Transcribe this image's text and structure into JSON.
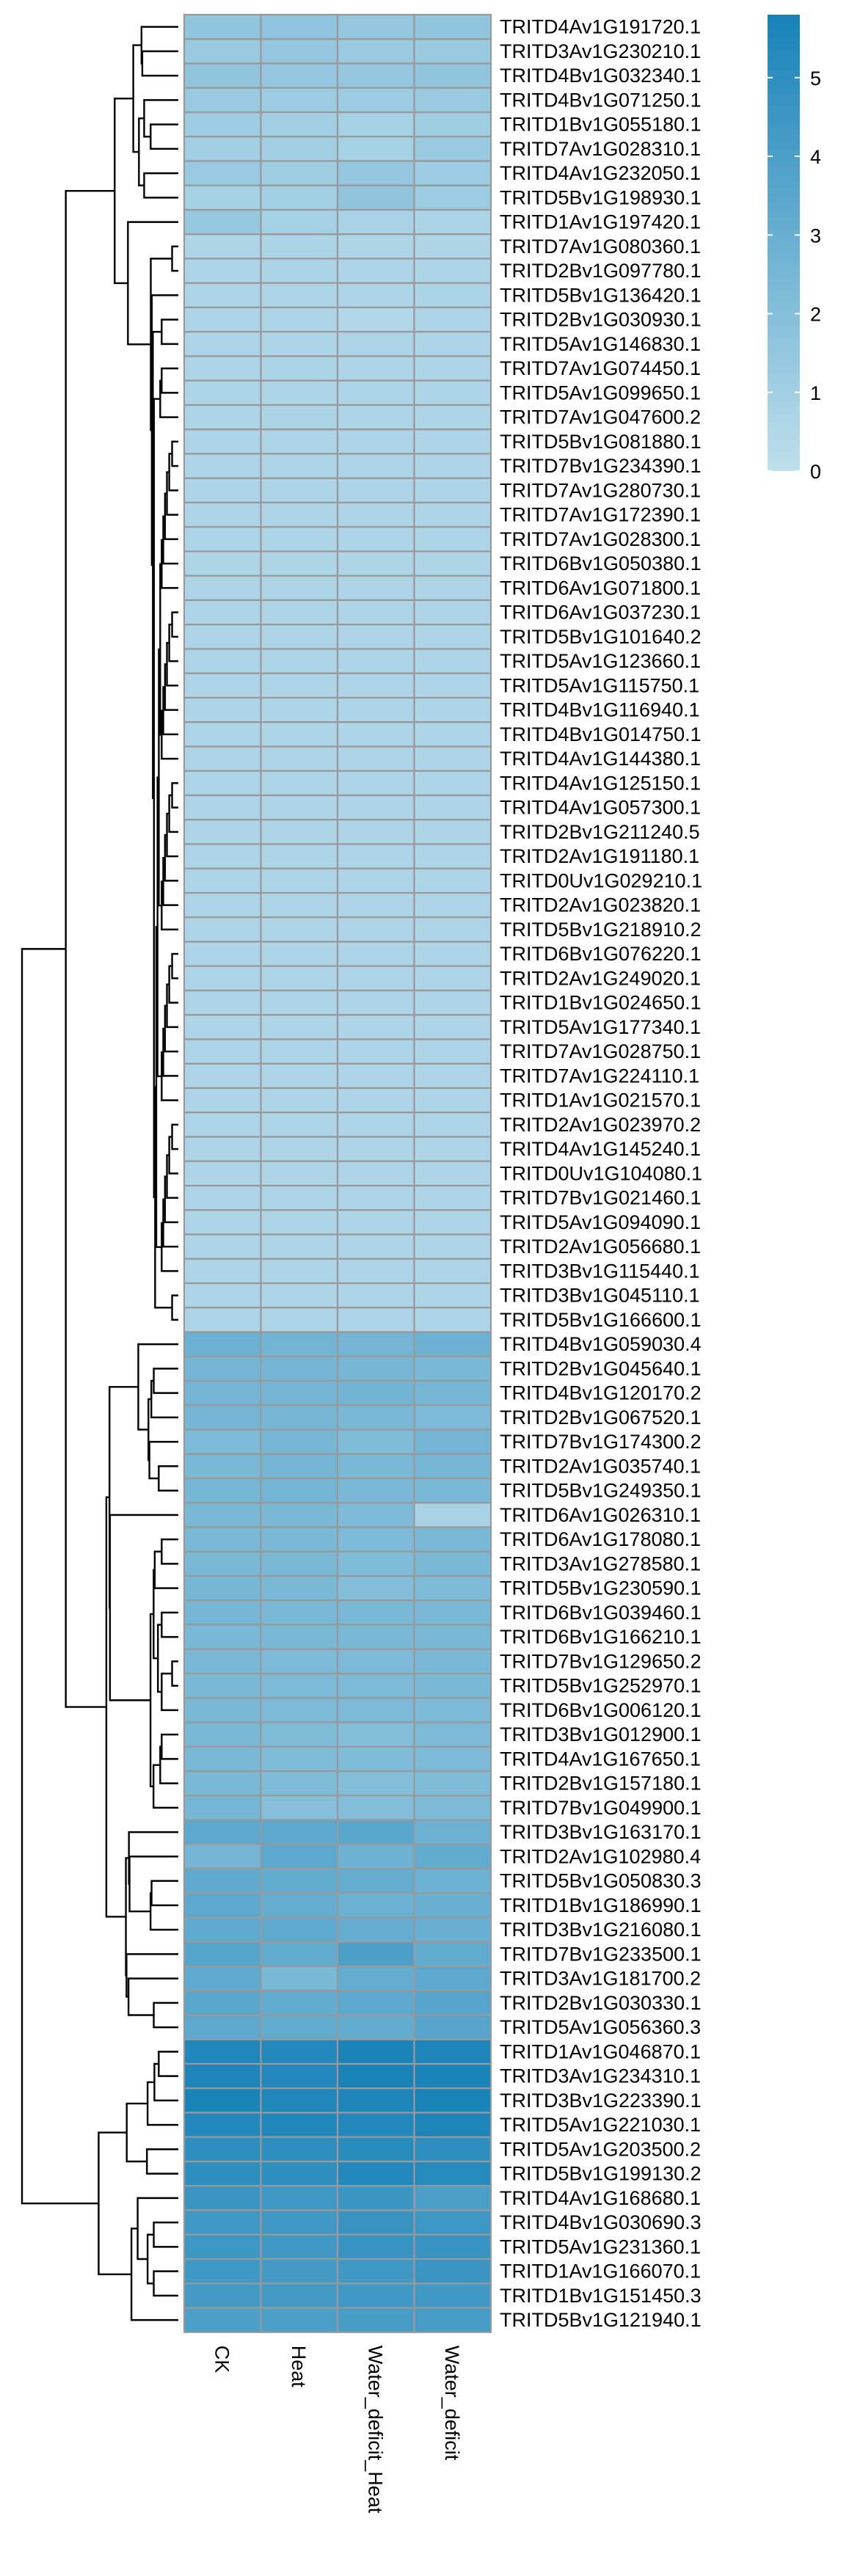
{
  "chart_data": {
    "type": "heatmap",
    "title": "",
    "columns": [
      "CK",
      "Heat",
      "Water_deficit_Heat",
      "Water_deficit"
    ],
    "rows": [
      "TRITD4Av1G191720.1",
      "TRITD3Av1G230210.1",
      "TRITD4Bv1G032340.1",
      "TRITD4Bv1G071250.1",
      "TRITD1Bv1G055180.1",
      "TRITD7Av1G028310.1",
      "TRITD4Av1G232050.1",
      "TRITD5Bv1G198930.1",
      "TRITD1Av1G197420.1",
      "TRITD7Av1G080360.1",
      "TRITD2Bv1G097780.1",
      "TRITD5Bv1G136420.1",
      "TRITD2Bv1G030930.1",
      "TRITD5Av1G146830.1",
      "TRITD7Av1G074450.1",
      "TRITD5Av1G099650.1",
      "TRITD7Av1G047600.2",
      "TRITD5Bv1G081880.1",
      "TRITD7Bv1G234390.1",
      "TRITD7Av1G280730.1",
      "TRITD7Av1G172390.1",
      "TRITD7Av1G028300.1",
      "TRITD6Bv1G050380.1",
      "TRITD6Av1G071800.1",
      "TRITD6Av1G037230.1",
      "TRITD5Bv1G101640.2",
      "TRITD5Av1G123660.1",
      "TRITD5Av1G115750.1",
      "TRITD4Bv1G116940.1",
      "TRITD4Bv1G014750.1",
      "TRITD4Av1G144380.1",
      "TRITD4Av1G125150.1",
      "TRITD4Av1G057300.1",
      "TRITD2Bv1G211240.5",
      "TRITD2Av1G191180.1",
      "TRITD0Uv1G029210.1",
      "TRITD2Av1G023820.1",
      "TRITD5Bv1G218910.2",
      "TRITD6Bv1G076220.1",
      "TRITD2Av1G249020.1",
      "TRITD1Bv1G024650.1",
      "TRITD5Av1G177340.1",
      "TRITD7Av1G028750.1",
      "TRITD7Av1G224110.1",
      "TRITD1Av1G021570.1",
      "TRITD2Av1G023970.2",
      "TRITD4Av1G145240.1",
      "TRITD0Uv1G104080.1",
      "TRITD7Bv1G021460.1",
      "TRITD5Av1G094090.1",
      "TRITD2Av1G056680.1",
      "TRITD3Bv1G115440.1",
      "TRITD3Bv1G045110.1",
      "TRITD5Bv1G166600.1",
      "TRITD4Bv1G059030.4",
      "TRITD2Bv1G045640.1",
      "TRITD4Bv1G120170.2",
      "TRITD2Bv1G067520.1",
      "TRITD7Bv1G174300.2",
      "TRITD2Av1G035740.1",
      "TRITD5Bv1G249350.1",
      "TRITD6Av1G026310.1",
      "TRITD6Av1G178080.1",
      "TRITD3Av1G278580.1",
      "TRITD5Bv1G230590.1",
      "TRITD6Bv1G039460.1",
      "TRITD6Bv1G166210.1",
      "TRITD7Bv1G129650.2",
      "TRITD5Bv1G252970.1",
      "TRITD6Bv1G006120.1",
      "TRITD3Bv1G012900.1",
      "TRITD4Av1G167650.1",
      "TRITD2Bv1G157180.1",
      "TRITD7Bv1G049900.1",
      "TRITD3Bv1G163170.1",
      "TRITD2Av1G102980.4",
      "TRITD5Bv1G050830.3",
      "TRITD1Bv1G186990.1",
      "TRITD3Bv1G216080.1",
      "TRITD7Bv1G233500.1",
      "TRITD3Av1G181700.2",
      "TRITD2Bv1G030330.1",
      "TRITD5Av1G056360.3",
      "TRITD1Av1G046870.1",
      "TRITD3Av1G234310.1",
      "TRITD3Bv1G223390.1",
      "TRITD5Av1G221030.1",
      "TRITD5Av1G203500.2",
      "TRITD5Bv1G199130.2",
      "TRITD4Av1G168680.1",
      "TRITD4Bv1G030690.3",
      "TRITD5Av1G231360.1",
      "TRITD1Av1G166070.1",
      "TRITD1Bv1G151450.3",
      "TRITD5Bv1G121940.1"
    ],
    "values": [
      [
        1.6,
        1.7,
        1.5,
        1.6
      ],
      [
        1.3,
        1.5,
        1.3,
        1.3
      ],
      [
        1.6,
        1.5,
        1.5,
        1.6
      ],
      [
        1.3,
        1.2,
        1.2,
        1.3
      ],
      [
        1.2,
        1.0,
        0.9,
        1.1
      ],
      [
        1.0,
        1.0,
        0.9,
        1.3
      ],
      [
        1.3,
        1.1,
        1.5,
        1.2
      ],
      [
        0.9,
        1.0,
        1.6,
        1.2
      ],
      [
        1.4,
        0.9,
        0.8,
        0.7
      ],
      [
        0.6,
        0.7,
        0.6,
        0.6
      ],
      [
        0.6,
        0.7,
        0.6,
        0.6
      ],
      [
        0.6,
        0.6,
        0.6,
        0.7
      ],
      [
        0.6,
        0.6,
        0.5,
        0.6
      ],
      [
        0.6,
        0.6,
        0.6,
        0.6
      ],
      [
        0.6,
        0.7,
        0.6,
        0.6
      ],
      [
        0.6,
        0.6,
        0.6,
        0.6
      ],
      [
        0.6,
        0.7,
        0.6,
        0.6
      ],
      [
        0.6,
        0.6,
        0.6,
        0.6
      ],
      [
        0.6,
        0.6,
        0.6,
        0.6
      ],
      [
        0.6,
        0.6,
        0.6,
        0.6
      ],
      [
        0.6,
        0.6,
        0.6,
        0.6
      ],
      [
        0.6,
        0.6,
        0.6,
        0.6
      ],
      [
        0.6,
        0.6,
        0.6,
        0.6
      ],
      [
        0.6,
        0.6,
        0.6,
        0.6
      ],
      [
        0.6,
        0.6,
        0.6,
        0.6
      ],
      [
        0.6,
        0.6,
        0.6,
        0.6
      ],
      [
        0.6,
        0.6,
        0.6,
        0.6
      ],
      [
        0.6,
        0.6,
        0.6,
        0.6
      ],
      [
        0.6,
        0.6,
        0.6,
        0.6
      ],
      [
        0.6,
        0.6,
        0.6,
        0.6
      ],
      [
        0.6,
        0.6,
        0.6,
        0.6
      ],
      [
        0.6,
        0.6,
        0.6,
        0.6
      ],
      [
        0.6,
        0.6,
        0.6,
        0.6
      ],
      [
        0.6,
        0.6,
        0.6,
        0.6
      ],
      [
        0.6,
        0.6,
        0.6,
        0.6
      ],
      [
        0.6,
        0.6,
        0.6,
        0.6
      ],
      [
        0.6,
        0.6,
        0.6,
        0.6
      ],
      [
        0.6,
        0.6,
        0.6,
        0.6
      ],
      [
        0.6,
        0.6,
        0.6,
        0.6
      ],
      [
        0.6,
        0.6,
        0.6,
        0.6
      ],
      [
        0.6,
        0.6,
        0.6,
        0.6
      ],
      [
        0.6,
        0.6,
        0.6,
        0.6
      ],
      [
        0.6,
        0.6,
        0.6,
        0.6
      ],
      [
        0.6,
        0.6,
        0.6,
        0.6
      ],
      [
        0.6,
        0.6,
        0.6,
        0.6
      ],
      [
        0.6,
        0.6,
        0.6,
        0.6
      ],
      [
        0.6,
        0.6,
        0.6,
        0.6
      ],
      [
        0.6,
        0.6,
        0.6,
        0.6
      ],
      [
        0.6,
        0.6,
        0.6,
        0.6
      ],
      [
        0.6,
        0.6,
        0.6,
        0.6
      ],
      [
        0.6,
        0.6,
        0.6,
        0.6
      ],
      [
        0.6,
        0.6,
        0.6,
        0.6
      ],
      [
        0.6,
        0.6,
        0.6,
        0.6
      ],
      [
        0.6,
        0.6,
        0.6,
        0.6
      ],
      [
        2.9,
        2.7,
        2.6,
        2.8
      ],
      [
        2.6,
        2.6,
        2.5,
        2.4
      ],
      [
        2.6,
        2.6,
        2.7,
        2.5
      ],
      [
        2.6,
        2.5,
        2.4,
        2.3
      ],
      [
        2.3,
        2.5,
        2.2,
        2.6
      ],
      [
        2.4,
        2.6,
        2.4,
        2.5
      ],
      [
        2.5,
        2.6,
        2.4,
        2.4
      ],
      [
        2.4,
        2.4,
        2.3,
        0.8
      ],
      [
        2.4,
        2.4,
        2.3,
        2.4
      ],
      [
        2.4,
        2.4,
        2.2,
        2.4
      ],
      [
        2.5,
        2.4,
        2.1,
        2.3
      ],
      [
        2.5,
        2.4,
        2.4,
        2.4
      ],
      [
        2.4,
        2.4,
        2.4,
        2.4
      ],
      [
        2.4,
        2.3,
        2.3,
        2.4
      ],
      [
        2.4,
        2.3,
        2.3,
        2.4
      ],
      [
        2.4,
        2.3,
        2.3,
        2.3
      ],
      [
        2.4,
        2.2,
        2.1,
        2.3
      ],
      [
        2.4,
        2.2,
        2.2,
        2.3
      ],
      [
        2.4,
        2.2,
        2.1,
        2.2
      ],
      [
        2.5,
        2.0,
        2.1,
        2.3
      ],
      [
        3.4,
        3.4,
        3.5,
        2.8
      ],
      [
        2.6,
        3.4,
        2.8,
        3.2
      ],
      [
        3.3,
        3.2,
        3.1,
        2.9
      ],
      [
        3.4,
        3.1,
        2.9,
        3.0
      ],
      [
        3.3,
        3.3,
        3.1,
        3.0
      ],
      [
        3.7,
        3.2,
        4.0,
        3.2
      ],
      [
        3.3,
        2.4,
        3.1,
        3.4
      ],
      [
        3.5,
        3.2,
        3.4,
        3.6
      ],
      [
        3.4,
        3.2,
        3.2,
        3.6
      ],
      [
        5.5,
        5.4,
        5.7,
        5.6
      ],
      [
        5.6,
        5.4,
        5.7,
        5.7
      ],
      [
        5.7,
        5.5,
        5.6,
        5.7
      ],
      [
        5.4,
        5.5,
        5.4,
        5.6
      ],
      [
        5.0,
        5.0,
        5.2,
        5.0
      ],
      [
        5.0,
        5.0,
        5.4,
        5.3
      ],
      [
        4.6,
        4.4,
        4.6,
        4.0
      ],
      [
        4.4,
        4.4,
        4.7,
        4.5
      ],
      [
        4.5,
        4.4,
        4.7,
        4.7
      ],
      [
        4.4,
        4.3,
        4.4,
        4.6
      ],
      [
        4.3,
        4.3,
        4.4,
        4.4
      ],
      [
        4.0,
        4.0,
        4.1,
        4.2
      ]
    ],
    "legend": {
      "ticks": [
        0,
        1,
        2,
        3,
        4,
        5
      ],
      "range": [
        0,
        5.8
      ],
      "placement": "top-right"
    },
    "colors": {
      "low": "#bfdfec",
      "high": "#1782b8",
      "cell_border": "#999999"
    }
  }
}
